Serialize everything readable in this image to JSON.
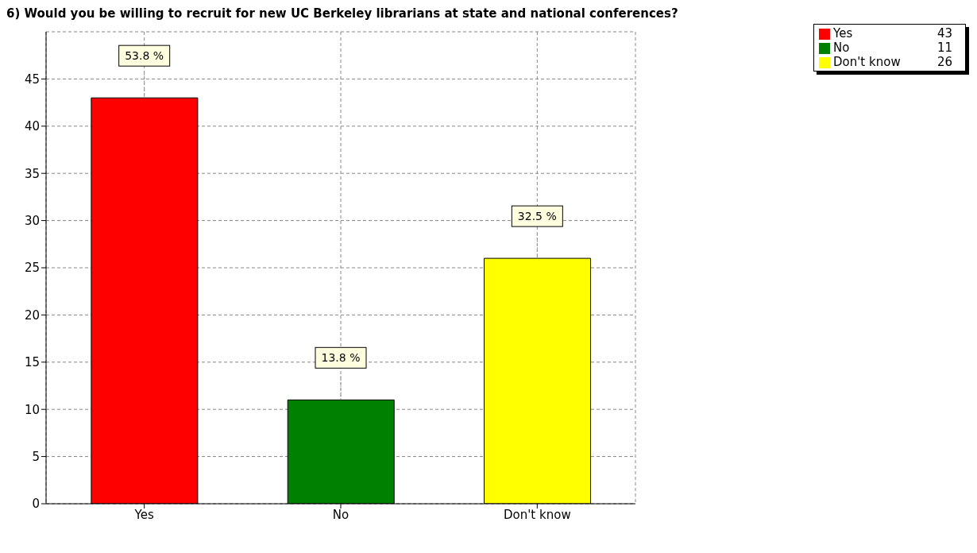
{
  "chart_data": {
    "type": "bar",
    "title": "6) Would you be willing to recruit for new UC Berkeley librarians at state and national conferences?",
    "categories": [
      "Yes",
      "No",
      "Don't know"
    ],
    "stacked": true,
    "series": [
      {
        "name": "Yes",
        "color": "#ff0000",
        "values": [
          43,
          null,
          null
        ]
      },
      {
        "name": "No",
        "color": "#008000",
        "values": [
          null,
          11,
          null
        ]
      },
      {
        "name": "Don't know",
        "color": "#ffff00",
        "values": [
          null,
          null,
          26
        ]
      }
    ],
    "annotations": [
      {
        "text": "53.8 %",
        "x": "Yes",
        "y": 43
      },
      {
        "text": "13.8 %",
        "x": "No",
        "y": 11
      },
      {
        "text": "32.5 %",
        "x": "Don't know",
        "y": 26
      },
      "43",
      "11",
      "26"
    ],
    "ylim": [
      0,
      50
    ],
    "yticks": [
      0,
      5,
      10,
      15,
      20,
      25,
      30,
      35,
      40,
      45
    ],
    "grid": true,
    "legend": "top right"
  }
}
